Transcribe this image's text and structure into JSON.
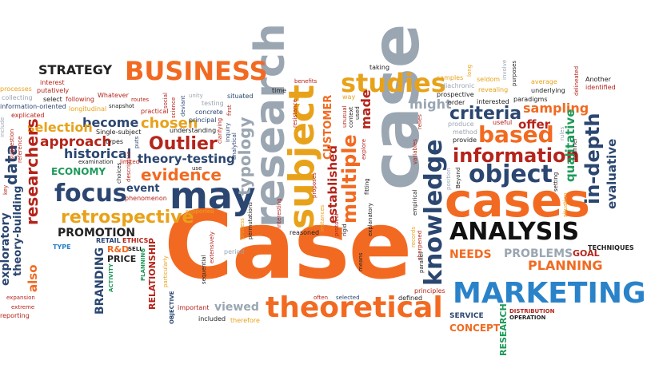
{
  "colors": {
    "orange": "#f26a21",
    "blue": "#2a82c9",
    "navy": "#2b4670",
    "gray": "#9aa6b2",
    "lightblue": "#4aa8e0",
    "gold": "#e8a21a",
    "darkred": "#b5241b",
    "green": "#1e9a5a",
    "black": "#111111",
    "slate": "#5f6d7b"
  },
  "words": {
    "case": "Case",
    "case_vertical": "case",
    "cases": "cases",
    "research": "research",
    "subject": "subject",
    "studies": "studies",
    "business": "BUSINESS",
    "strategy": "STRATEGY",
    "marketing": "MARKETING",
    "analysis": "ANALYSIS",
    "theoretical": "theoretical",
    "knowledge": "knowledge",
    "information": "information",
    "object": "object",
    "in_depth": "in-depth",
    "may": "may",
    "focus": "focus",
    "retrospective": "retrospective",
    "outlier": "Outlier",
    "evidence": "evidence",
    "theory_testing": "theory-testing",
    "typology": "typology",
    "chosen": "chosen",
    "become": "become",
    "approach": "approach",
    "historical": "historical",
    "selection": "selection",
    "researchers": "researchers",
    "data": "data",
    "economy": "ECONOMY",
    "promotion": "PROMOTION",
    "branding": "BRANDING",
    "needs": "NEEDS",
    "problems": "PROBLEMS",
    "planning": "PLANNING",
    "planning_small": "PLANNING",
    "goal": "GOAL",
    "techniques": "TECHNIQUES",
    "service": "SERVICE",
    "concept": "CONCEPT",
    "research_caps": "RESEARCH",
    "distribution": "DISTRIBUTION",
    "operation": "OPERATION",
    "criteria": "criteria",
    "based": "based",
    "sampling": "sampling",
    "offer": "offer",
    "qualitative": "qualitative",
    "evaluative": "evaluative",
    "might": "might",
    "multiple": "multiple",
    "established": "established",
    "made": "made",
    "customer": "CUSTOMER",
    "viewed": "viewed",
    "retail": "RETAIL",
    "ethics": "ETHICS",
    "r_and_d": "R&D",
    "sell": "SELL",
    "price": "PRICE",
    "activity": "ACTIVITY",
    "relationship": "RELATIONSHIP",
    "objective": "OBJECTIVE",
    "type": "TYPE",
    "exploratory": "exploratory",
    "theory_building": "theory-building",
    "also": "also",
    "event": "event",
    "phenomenon": "phenomenon",
    "examination": "examination",
    "limited": "limited",
    "choices": "choices",
    "descriptive": "descriptive",
    "puts": "puts",
    "types": "types",
    "single_subject": "Single-subject",
    "understanding": "understanding",
    "concrete": "concrete",
    "principal": "principal",
    "testing": "testing",
    "unity": "unity",
    "deviant": "deviant",
    "science": "science",
    "social": "social",
    "practical": "practical",
    "routes": "routes",
    "snapshot": "snapshot",
    "whatever": "Whatever",
    "following": "following",
    "longitudinal": "longitudinal",
    "select": "select",
    "putatively": "putatively",
    "interest": "interest",
    "processes": "processes",
    "collecting": "collecting",
    "information_oriented": "information-oriented",
    "explicated": "explicated",
    "include": "include",
    "suggestion": "suggestion",
    "reference": "reference",
    "key": "key",
    "situated": "situated",
    "first": "first",
    "clarifying": "clarifying",
    "inquiry": "inquiry",
    "analytical": "analytical",
    "use": "use",
    "supported": "supported",
    "extensively": "extensively",
    "sequential": "sequential",
    "period": "period",
    "particularly": "particularly",
    "important": "important",
    "included": "included",
    "therefore": "therefore",
    "expansion": "expansion",
    "extreme": "extreme",
    "reporting": "reporting",
    "often": "often",
    "selected": "selected",
    "defined": "defined",
    "principles": "principles",
    "reasoned": "reasoned",
    "permutations": "permutations",
    "interesting": "interesting",
    "process": "process",
    "resistance": "resistance",
    "benefits": "benefits",
    "time": "time",
    "proposes": "proposes",
    "instances": "instances",
    "protocol": "protocol",
    "rigid": "rigid",
    "unusual": "unusual",
    "context": "context",
    "used": "used",
    "explore": "explore",
    "way": "way",
    "taking": "taking",
    "future": "future",
    "fitting": "fitting",
    "explanatory": "explanatory",
    "means": "means",
    "variables": "variables",
    "relies": "relies",
    "empirical": "empirical",
    "records": "records",
    "sharpened": "sharpened",
    "parallel": "parallel",
    "samples": "samples",
    "diachronic": "diachronic",
    "prospective": "prospective",
    "order": "order",
    "produce": "produce",
    "method": "method",
    "provide": "provide",
    "position": "position",
    "beyond": "Beyond",
    "long": "long",
    "seldom": "seldom",
    "revealing": "revealing",
    "interested": "interested",
    "involve": "involve",
    "purposes": "purposes",
    "average": "average",
    "underlying": "underlying",
    "paradigms": "paradigms",
    "useful": "useful",
    "delineated": "delineated",
    "another": "Another",
    "identified": "identified",
    "setting": "setting",
    "situation": "situation",
    "rules": "rules",
    "manner": "manner"
  }
}
